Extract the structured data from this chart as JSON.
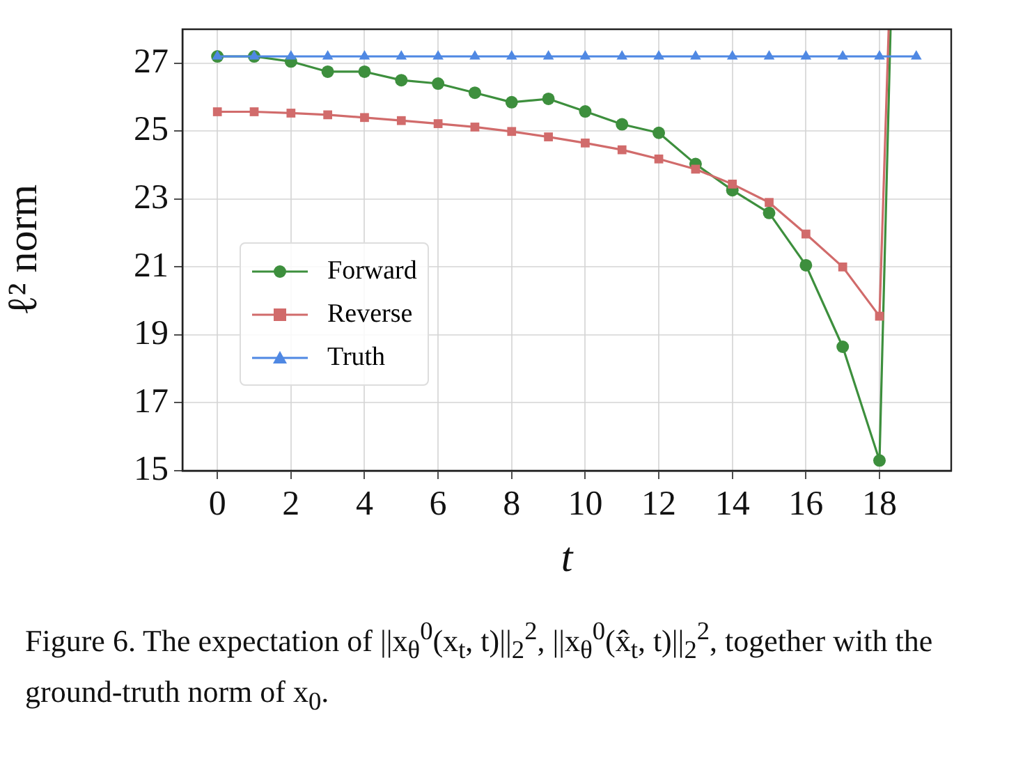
{
  "chart_data": {
    "type": "line",
    "xlabel": "t",
    "ylabel": "ℓ² norm",
    "xlim": [
      -0.95,
      19.95
    ],
    "xticks": [
      0,
      2,
      4,
      6,
      8,
      10,
      12,
      14,
      16,
      18
    ],
    "ylim": [
      15,
      28
    ],
    "yticks": [
      15,
      17,
      19,
      21,
      23,
      25,
      27
    ],
    "grid": true,
    "legend": "center left",
    "line_style": "solid",
    "series": [
      {
        "name": "Forward",
        "color": "#3d8f3d",
        "marker": "circle",
        "x": [
          0,
          1,
          2,
          3,
          4,
          5,
          6,
          7,
          8,
          9,
          10,
          11,
          12,
          13,
          14,
          15,
          16,
          17,
          18,
          18.3
        ],
        "values": [
          27.2,
          27.2,
          27.05,
          26.75,
          26.75,
          26.5,
          26.4,
          26.13,
          25.85,
          25.95,
          25.58,
          25.2,
          24.95,
          24.03,
          23.26,
          22.59,
          21.05,
          18.65,
          15.3,
          28
        ]
      },
      {
        "name": "Reverse",
        "color": "#d16b6b",
        "marker": "square",
        "x": [
          0,
          1,
          2,
          3,
          4,
          5,
          6,
          7,
          8,
          9,
          10,
          11,
          12,
          13,
          14,
          15,
          16,
          17,
          18,
          18.25
        ],
        "values": [
          25.57,
          25.57,
          25.53,
          25.48,
          25.4,
          25.31,
          25.22,
          25.12,
          24.99,
          24.83,
          24.65,
          24.45,
          24.18,
          23.88,
          23.44,
          22.9,
          21.97,
          21.0,
          19.55,
          28
        ]
      },
      {
        "name": "Truth",
        "color": "#4f88e3",
        "marker": "triangle",
        "x": [
          0,
          1,
          2,
          3,
          4,
          5,
          6,
          7,
          8,
          9,
          10,
          11,
          12,
          13,
          14,
          15,
          16,
          17,
          18,
          19
        ],
        "values": [
          27.2,
          27.2,
          27.2,
          27.2,
          27.2,
          27.2,
          27.2,
          27.2,
          27.2,
          27.2,
          27.2,
          27.2,
          27.2,
          27.2,
          27.2,
          27.2,
          27.2,
          27.2,
          27.2,
          27.2
        ]
      }
    ],
    "annotations": [
      "Figure 6. The expectation of ||x$_{θ}$$^{0}$(x$_{t}$, t)||$_{2}$$^{2}$, ||x$_{θ}$$^{0}$(x̂$_{t}$, t)||$_{2}$$^{2}$, together with the ground-truth norm of x$_{0}$."
    ]
  }
}
